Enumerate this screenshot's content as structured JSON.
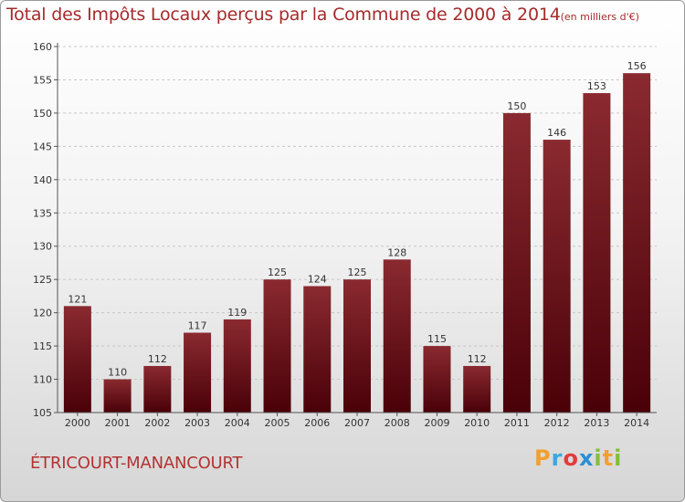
{
  "title": "Total des Impôts Locaux perçus par la Commune de 2000 à 2014",
  "unit": "(en milliers d'€)",
  "commune": "ÉTRICOURT-MANANCOURT",
  "brand": {
    "letters": [
      "P",
      "r",
      "o",
      "x",
      "i",
      "t",
      "i"
    ]
  },
  "colors": {
    "title": "#a62a2a",
    "bar_top": "#8a2a30",
    "bar_bottom": "#4a0008"
  },
  "chart_data": {
    "type": "bar",
    "title": "Total des Impôts Locaux perçus par la Commune de 2000 à 2014",
    "xlabel": "",
    "ylabel": "",
    "ylim": [
      105,
      160
    ],
    "yticks": [
      105,
      110,
      115,
      120,
      125,
      130,
      135,
      140,
      145,
      150,
      155,
      160
    ],
    "categories": [
      "2000",
      "2001",
      "2002",
      "2003",
      "2004",
      "2005",
      "2006",
      "2007",
      "2008",
      "2009",
      "2010",
      "2011",
      "2012",
      "2013",
      "2014"
    ],
    "values": [
      121,
      110,
      112,
      117,
      119,
      125,
      124,
      125,
      128,
      115,
      112,
      150,
      146,
      153,
      156
    ]
  }
}
